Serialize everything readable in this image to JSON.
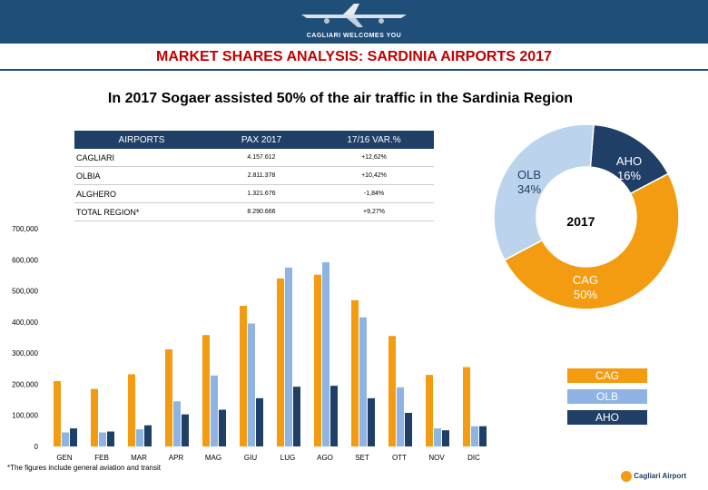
{
  "header": {
    "banner_text": "CAGLIARI WELCOMES YOU"
  },
  "title": "MARKET SHARES ANALYSIS: SARDINIA AIRPORTS 2017",
  "subtitle": "In 2017 Sogaer assisted 50% of the air traffic in the Sardinia Region",
  "table": {
    "headers": [
      "AIRPORTS",
      "PAX 2017",
      "17/16 VAR.%"
    ],
    "rows": [
      [
        "CAGLIARI",
        "4.157.612",
        "+12,62%"
      ],
      [
        "OLBIA",
        "2.811.378",
        "+10,42%"
      ],
      [
        "ALGHERO",
        "1.321.676",
        "-1,84%"
      ],
      [
        "TOTAL REGION*",
        "8.290.666",
        "+9,27%"
      ]
    ]
  },
  "footnote": "*The figures include general aviation and transit",
  "logo_text": "Cagliari Airport",
  "chart_data": [
    {
      "type": "bar",
      "categories": [
        "GEN",
        "FEB",
        "MAR",
        "APR",
        "MAG",
        "GIU",
        "LUG",
        "AGO",
        "SET",
        "OTT",
        "NOV",
        "DIC"
      ],
      "series": [
        {
          "name": "CAG",
          "color": "#f39c12",
          "values": [
            210000,
            185000,
            232000,
            312000,
            358000,
            452000,
            540000,
            552000,
            470000,
            355000,
            230000,
            255000
          ]
        },
        {
          "name": "OLB",
          "color": "#8fb4e3",
          "values": [
            45000,
            45000,
            55000,
            145000,
            228000,
            395000,
            575000,
            592000,
            415000,
            190000,
            58000,
            65000
          ]
        },
        {
          "name": "AHO",
          "color": "#1f3f66",
          "values": [
            58000,
            48000,
            68000,
            103000,
            118000,
            155000,
            192000,
            195000,
            155000,
            108000,
            52000,
            65000
          ]
        }
      ],
      "y_ticks": [
        "0",
        "100,000",
        "200,000",
        "300,000",
        "400,000",
        "500,000",
        "600,000",
        "700,000"
      ],
      "ylim": [
        0,
        700000
      ],
      "legend": "right"
    },
    {
      "type": "pie",
      "title": "2017",
      "slices": [
        {
          "label": "CAG",
          "value": 50,
          "display": "50%",
          "color": "#f39c12"
        },
        {
          "label": "OLB",
          "value": 34,
          "display": "34%",
          "color": "#bcd3ee"
        },
        {
          "label": "AHO",
          "value": 16,
          "display": "16%",
          "color": "#1f3f66"
        }
      ]
    }
  ]
}
